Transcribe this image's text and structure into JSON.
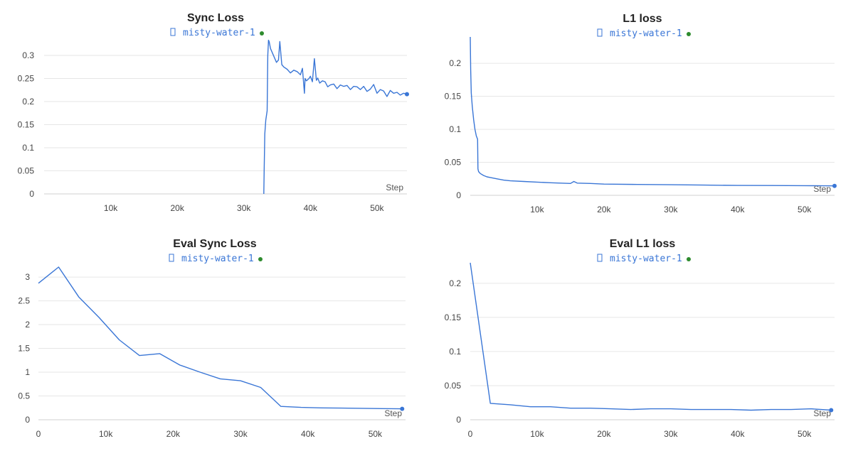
{
  "colors": {
    "series": "#3a76d6",
    "dot": "#2e8b2e",
    "grid": "#e6e6e6",
    "axis": "#d0d0d0"
  },
  "chart_data": [
    {
      "type": "line",
      "title": "Sync Loss",
      "legend": "misty-water-1",
      "legend_icon": "chart-icon",
      "xlabel": "Step",
      "ylabel": "",
      "grid": true,
      "ylim": [
        0,
        0.34
      ],
      "xlim": [
        0,
        54500
      ],
      "yticks": [
        0,
        0.05,
        0.1,
        0.15,
        0.2,
        0.25,
        0.3
      ],
      "ytick_labels": [
        "0",
        "0.05",
        "0.1",
        "0.15",
        "0.2",
        "0.25",
        "0.3"
      ],
      "xticks": [
        10000,
        20000,
        30000,
        40000,
        50000
      ],
      "xtick_labels": [
        "10k",
        "20k",
        "30k",
        "40k",
        "50k"
      ],
      "series": [
        {
          "x": [
            33000,
            33050,
            33150,
            33300,
            33500,
            33600,
            33700,
            33800,
            34000,
            34300,
            34600,
            34900,
            35200,
            35400,
            35700,
            36000,
            36500,
            37000,
            37500,
            38000,
            38500,
            38800,
            39100,
            39200,
            39400,
            39800,
            40000,
            40300,
            40600,
            40900,
            41100,
            41400,
            41800,
            42200,
            42600,
            43000,
            43500,
            44000,
            44500,
            45000,
            45500,
            46000,
            46500,
            47000,
            47500,
            48000,
            48500,
            49000,
            49500,
            50000,
            50500,
            51000,
            51500,
            52000,
            52500,
            53000,
            53500,
            54000,
            54500
          ],
          "y": [
            0.0,
            0.05,
            0.13,
            0.16,
            0.18,
            0.3,
            0.333,
            0.33,
            0.315,
            0.305,
            0.295,
            0.285,
            0.29,
            0.33,
            0.28,
            0.275,
            0.27,
            0.262,
            0.268,
            0.265,
            0.258,
            0.272,
            0.218,
            0.25,
            0.245,
            0.25,
            0.255,
            0.243,
            0.293,
            0.246,
            0.251,
            0.24,
            0.245,
            0.243,
            0.232,
            0.236,
            0.238,
            0.228,
            0.236,
            0.233,
            0.235,
            0.226,
            0.233,
            0.232,
            0.226,
            0.233,
            0.222,
            0.227,
            0.237,
            0.218,
            0.226,
            0.223,
            0.211,
            0.224,
            0.218,
            0.22,
            0.214,
            0.218,
            0.216
          ]
        }
      ]
    },
    {
      "type": "line",
      "title": "L1 loss",
      "legend": "misty-water-1",
      "legend_icon": "chart-icon",
      "xlabel": "Step",
      "ylabel": "",
      "grid": true,
      "ylim": [
        0,
        0.24
      ],
      "xlim": [
        0,
        54500
      ],
      "yticks": [
        0,
        0.05,
        0.1,
        0.15,
        0.2
      ],
      "ytick_labels": [
        "0",
        "0.05",
        "0.1",
        "0.15",
        "0.2"
      ],
      "xticks": [
        10000,
        20000,
        30000,
        40000,
        50000
      ],
      "xtick_labels": [
        "10k",
        "20k",
        "30k",
        "40k",
        "50k"
      ],
      "series": [
        {
          "x": [
            0,
            60,
            150,
            300,
            500,
            700,
            900,
            1100,
            1150,
            1250,
            1500,
            2000,
            2500,
            3000,
            4000,
            5000,
            6000,
            8000,
            10000,
            12000,
            15000,
            15500,
            16000,
            18000,
            20000,
            25000,
            30000,
            35000,
            40000,
            45000,
            50000,
            54500
          ],
          "y": [
            0.24,
            0.19,
            0.155,
            0.135,
            0.115,
            0.1,
            0.09,
            0.085,
            0.04,
            0.036,
            0.033,
            0.03,
            0.028,
            0.027,
            0.025,
            0.023,
            0.022,
            0.021,
            0.02,
            0.019,
            0.018,
            0.021,
            0.0185,
            0.018,
            0.017,
            0.0165,
            0.016,
            0.0155,
            0.015,
            0.0148,
            0.0146,
            0.0143
          ]
        }
      ]
    },
    {
      "type": "line",
      "title": "Eval Sync Loss",
      "legend": "misty-water-1",
      "legend_icon": "chart-icon",
      "xlabel": "Step",
      "ylabel": "",
      "grid": true,
      "ylim": [
        0,
        3.3
      ],
      "xlim": [
        0,
        54500
      ],
      "yticks": [
        0,
        0.5,
        1,
        1.5,
        2,
        2.5,
        3
      ],
      "ytick_labels": [
        "0",
        "0.5",
        "1",
        "1.5",
        "2",
        "2.5",
        "3"
      ],
      "xticks": [
        0,
        10000,
        20000,
        30000,
        40000,
        50000
      ],
      "xtick_labels": [
        "0",
        "10k",
        "20k",
        "30k",
        "40k",
        "50k"
      ],
      "series": [
        {
          "x": [
            0,
            3000,
            6000,
            9000,
            12000,
            15000,
            18000,
            21000,
            24000,
            27000,
            30000,
            33000,
            36000,
            39000,
            42000,
            45000,
            48000,
            51000,
            54000
          ],
          "y": [
            2.87,
            3.21,
            2.58,
            2.15,
            1.68,
            1.35,
            1.39,
            1.15,
            1.0,
            0.86,
            0.82,
            0.68,
            0.28,
            0.26,
            0.25,
            0.245,
            0.24,
            0.235,
            0.23
          ]
        }
      ]
    },
    {
      "type": "line",
      "title": "Eval L1 loss",
      "legend": "misty-water-1",
      "legend_icon": "chart-icon",
      "xlabel": "Step",
      "ylabel": "",
      "grid": true,
      "ylim": [
        0,
        0.23
      ],
      "xlim": [
        0,
        54500
      ],
      "yticks": [
        0,
        0.05,
        0.1,
        0.15,
        0.2
      ],
      "ytick_labels": [
        "0",
        "0.05",
        "0.1",
        "0.15",
        "0.2"
      ],
      "xticks": [
        0,
        10000,
        20000,
        30000,
        40000,
        50000
      ],
      "xtick_labels": [
        "0",
        "10k",
        "20k",
        "30k",
        "40k",
        "50k"
      ],
      "series": [
        {
          "x": [
            0,
            3000,
            6000,
            9000,
            12000,
            15000,
            18000,
            21000,
            24000,
            27000,
            30000,
            33000,
            36000,
            39000,
            42000,
            45000,
            48000,
            51000,
            54000
          ],
          "y": [
            0.23,
            0.024,
            0.022,
            0.019,
            0.019,
            0.017,
            0.017,
            0.016,
            0.015,
            0.016,
            0.016,
            0.015,
            0.015,
            0.015,
            0.014,
            0.015,
            0.015,
            0.016,
            0.014
          ]
        }
      ]
    }
  ]
}
